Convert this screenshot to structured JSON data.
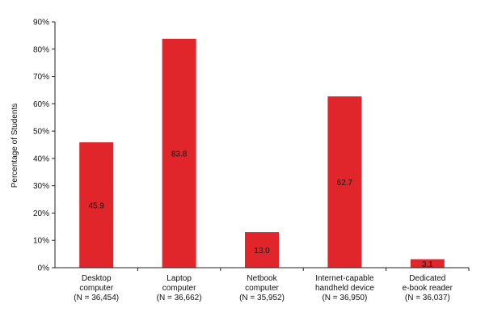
{
  "chart_data": {
    "type": "bar",
    "title": "",
    "xlabel": "",
    "ylabel": "Percentage of Students",
    "ylim": [
      0,
      90
    ],
    "yticks": [
      "0%",
      "10%",
      "20%",
      "30%",
      "40%",
      "50%",
      "60%",
      "70%",
      "80%",
      "90%"
    ],
    "grid": false,
    "legend": "none",
    "categories": [
      [
        "Desktop",
        "computer",
        "(N = 36,454)"
      ],
      [
        "Laptop",
        "computer",
        "(N = 36,662)"
      ],
      [
        "Netbook",
        "computer",
        "(N = 35,952)"
      ],
      [
        "Internet-capable",
        "handheld device",
        "(N = 36,950)"
      ],
      [
        "Dedicated",
        "e-book reader",
        "(N = 36,037)"
      ]
    ],
    "values": [
      45.9,
      83.8,
      13.0,
      62.7,
      3.1
    ],
    "data_labels": [
      "45.9",
      "83.8",
      "13.0",
      "62.7",
      "3.1"
    ],
    "bar_color": "#e0262b"
  }
}
